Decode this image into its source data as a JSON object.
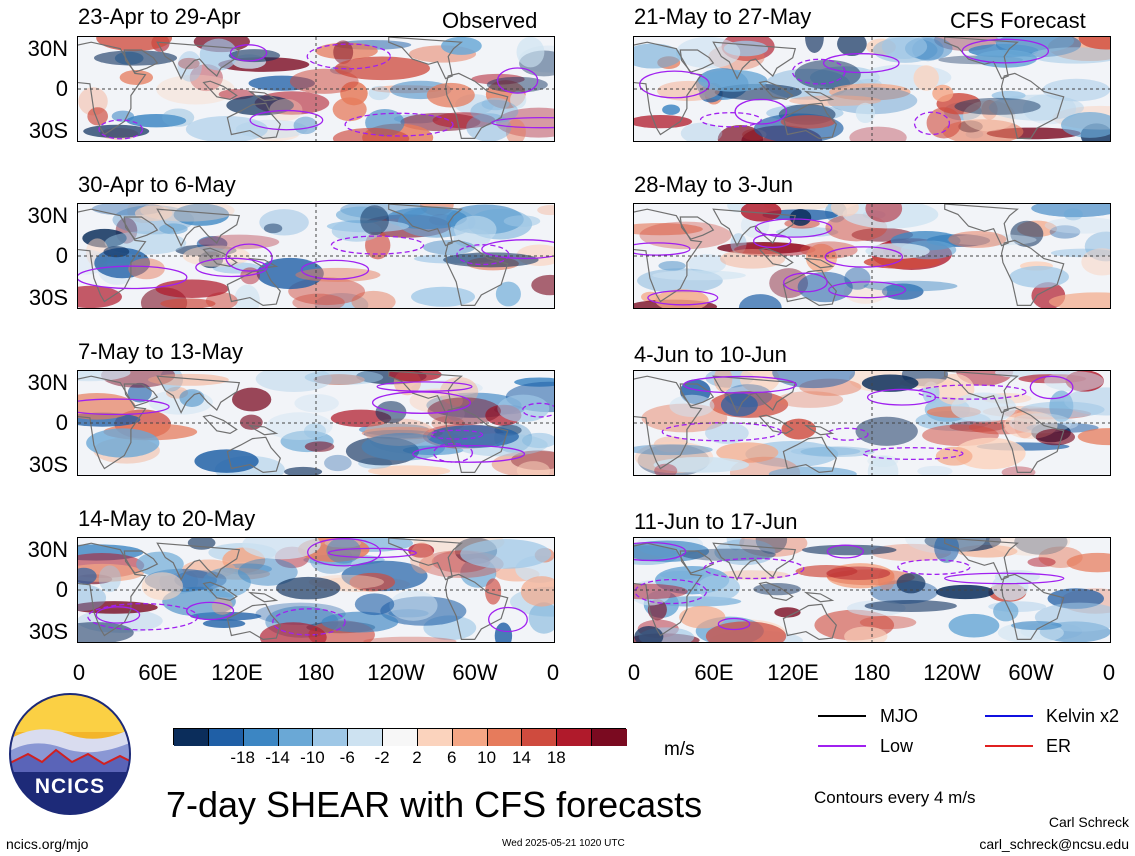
{
  "left_header": "Observed",
  "right_header": "CFS Forecast",
  "left_panels": [
    {
      "title": "23-Apr to 29-Apr"
    },
    {
      "title": "30-Apr to 6-May"
    },
    {
      "title": "7-May to 13-May"
    },
    {
      "title": "14-May to 20-May"
    }
  ],
  "right_panels": [
    {
      "title": "21-May to 27-May"
    },
    {
      "title": "28-May to 3-Jun"
    },
    {
      "title": "4-Jun to 10-Jun"
    },
    {
      "title": "11-Jun to 17-Jun"
    }
  ],
  "y_ticks": [
    "30N",
    "0",
    "30S"
  ],
  "x_ticks": [
    "0",
    "60E",
    "120E",
    "180",
    "120W",
    "60W",
    "0"
  ],
  "colorbar": {
    "colors": [
      "#0b2d5b",
      "#1f5fa6",
      "#3c86c3",
      "#6aa8d6",
      "#9ec7e6",
      "#cde2f1",
      "#f7f7f7",
      "#fbd3bd",
      "#f4a685",
      "#e67b5c",
      "#cf4b3e",
      "#b01a2b",
      "#7a0a20"
    ],
    "labels": [
      "-18",
      "-14",
      "-10",
      "-6",
      "-2",
      "2",
      "6",
      "10",
      "14",
      "18"
    ],
    "units": "m/s"
  },
  "legend": {
    "items": [
      {
        "label": "MJO",
        "color": "#000000"
      },
      {
        "label": "Kelvin x2",
        "color": "#1010e0"
      },
      {
        "label": "Low",
        "color": "#a020f0"
      },
      {
        "label": "ER",
        "color": "#e02020"
      }
    ],
    "contour_note": "Contours every 4 m/s"
  },
  "logo": {
    "text": "NCICS"
  },
  "main_title": "7-day SHEAR with CFS forecasts",
  "footer": {
    "url": "ncics.org/mjo",
    "timestamp": "Wed 2025-05-21 1020 UTC",
    "author": "Carl Schreck",
    "email": "carl_schreck@ncsu.edu"
  }
}
